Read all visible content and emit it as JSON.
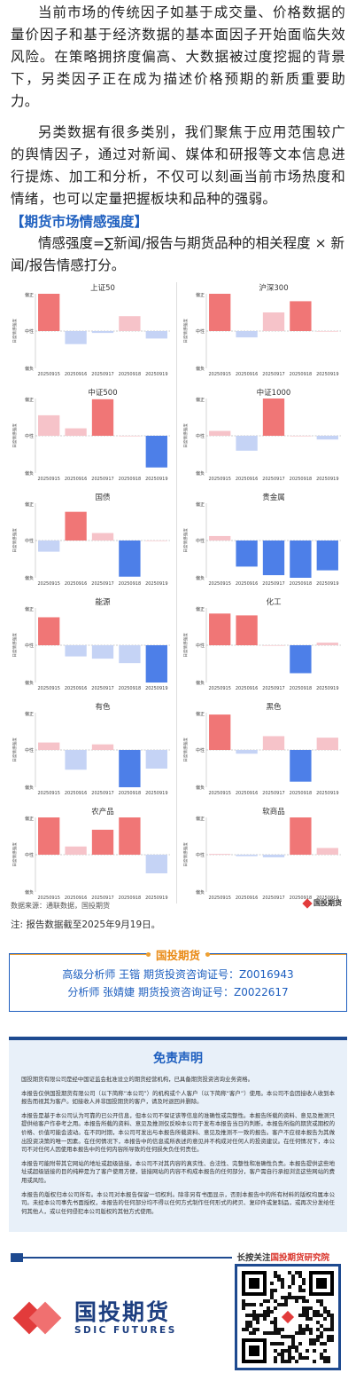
{
  "intro": {
    "p1": "当前市场的传统因子如基于成交量、价格数据的量价因子和基于经济数据的基本面因子开始面临失效风险。在策略拥挤度偏高、大数据被过度挖掘的背景下，另类因子正在成为描述价格预期的新质重要助力。",
    "p2": "另类数据有很多类别，我们聚焦于应用范围较广的舆情因子，通过对新闻、媒体和研报等文本信息进行提炼、加工和分析，不仅可以刻画当前市场热度和情绪，也可以定量把握板块和品种的强弱。",
    "section_title": "【期货市场情感强度】",
    "formula": "情感强度=∑新闻/报告与期货品种的相关程度 × 新闻/报告情感打分。"
  },
  "chart_common": {
    "y_labels": {
      "top": "偏正",
      "mid": "中性",
      "bottom": "偏负"
    },
    "y_axis_title": "日度情感强度",
    "dates": [
      "20250915",
      "20250916",
      "20250917",
      "20250918",
      "20250919"
    ],
    "ylim": [
      -1,
      1
    ],
    "pos_strong": "#f07676",
    "pos_light": "#f6c3c9",
    "neg_strong": "#4d7fe8",
    "neg_light": "#c5d3f5"
  },
  "chart_data": [
    {
      "type": "bar",
      "title": "上证50",
      "categories": [
        "20250915",
        "20250916",
        "20250917",
        "20250918",
        "20250919"
      ],
      "values": [
        1.0,
        -0.35,
        -0.05,
        0.4,
        -0.2
      ]
    },
    {
      "type": "bar",
      "title": "沪深300",
      "categories": [
        "20250915",
        "20250916",
        "20250917",
        "20250918",
        "20250919"
      ],
      "values": [
        1.0,
        -0.17,
        0.5,
        0.8,
        0.0
      ]
    },
    {
      "type": "bar",
      "title": "中证500",
      "categories": [
        "20250915",
        "20250916",
        "20250917",
        "20250918",
        "20250919"
      ],
      "values": [
        0.55,
        0.2,
        0.98,
        0.0,
        -0.85
      ]
    },
    {
      "type": "bar",
      "title": "中证1000",
      "categories": [
        "20250915",
        "20250916",
        "20250917",
        "20250918",
        "20250919"
      ],
      "values": [
        0.13,
        -0.4,
        1.0,
        0.0,
        -0.1
      ]
    },
    {
      "type": "bar",
      "title": "国债",
      "categories": [
        "20250915",
        "20250916",
        "20250917",
        "20250918",
        "20250919"
      ],
      "values": [
        -0.3,
        0.77,
        0.2,
        -0.97,
        0.0
      ]
    },
    {
      "type": "bar",
      "title": "贵金属",
      "categories": [
        "20250915",
        "20250916",
        "20250917",
        "20250918",
        "20250919"
      ],
      "values": [
        0.12,
        -0.7,
        -0.93,
        -1.0,
        -0.8
      ]
    },
    {
      "type": "bar",
      "title": "能源",
      "categories": [
        "20250915",
        "20250916",
        "20250917",
        "20250918",
        "20250919"
      ],
      "values": [
        0.75,
        -0.3,
        -0.36,
        -0.48,
        -1.0
      ]
    },
    {
      "type": "bar",
      "title": "化工",
      "categories": [
        "20250915",
        "20250916",
        "20250917",
        "20250918",
        "20250919"
      ],
      "values": [
        0.85,
        0.8,
        0.0,
        -0.75,
        0.07
      ]
    },
    {
      "type": "bar",
      "title": "有色",
      "categories": [
        "20250915",
        "20250916",
        "20250917",
        "20250918",
        "20250919"
      ],
      "values": [
        0.2,
        -0.53,
        0.15,
        -1.0,
        -0.5
      ]
    },
    {
      "type": "bar",
      "title": "黑色",
      "categories": [
        "20250915",
        "20250916",
        "20250917",
        "20250918",
        "20250919"
      ],
      "values": [
        0.95,
        -0.1,
        0.37,
        -0.85,
        0.33
      ]
    },
    {
      "type": "bar",
      "title": "农产品",
      "categories": [
        "20250915",
        "20250916",
        "20250917",
        "20250918",
        "20250919"
      ],
      "values": [
        1.0,
        0.22,
        0.67,
        1.0,
        -0.5
      ]
    },
    {
      "type": "bar",
      "title": "软商品",
      "categories": [
        "20250915",
        "20250916",
        "20250917",
        "20250918",
        "20250919"
      ],
      "values": [
        0.02,
        -0.04,
        -0.07,
        1.0,
        0.18
      ]
    }
  ],
  "source": {
    "text": "数据来源：通联数据，国投期货",
    "logo_text": "国投期货"
  },
  "note": "注: 报告数据截至2025年9月19日。",
  "analysts": {
    "brand": "国投期货",
    "line1": "高级分析师  王锴  期货投资咨询证号：Z0016943",
    "line2": "分析师  张婧婕  期货投资咨询证号：Z0022617"
  },
  "disclaimer": {
    "title": "免责声明",
    "paragraphs": [
      "国投期货有限公司是经中国证监会批准设立的期货经营机构，已具备期货投资咨询业务资格。",
      "本报告仅供国投期货有限公司（以下简称“本公司”）的机构或个人客户（以下简称“客户”）使用。本公司不会因接收人收到本报告而视其为客户。如接收人并非国投期货的客户，请及时退回并删除。",
      "本报告是基于本公司认为可靠的已公开信息，但本公司不保证该等信息的准确性或完整性。本报告所载的资料、意见及推测只提供给客户作参考之用。本报告所载的资料、意见及推测仅反映本公司于发布本报告当日的判断，本报告所指的期货或期权的价格、价值可能会波动。在不同时期，本公司可发出与本报告所载资料、意见及推测不一致的报告。客户不应视本报告为其做出投资决策的唯一因素。在任何情况下，本报告中的信息或所表述的意见并不构成对任何人的投资建议。在任何情况下，本公司不对任何人因使用本报告中的任何内容所导致的任何损失负任何责任。",
      "本报告可能附带其它网站的地址或超级链接，本公司不对其内容的真实性、合法性、完整性和准确性负责。本报告提供这些地址或超级链接的目的纯粹是为了客户使用方便，链接网站的内容不构成本报告的任何部分，客户需自行承担浏览这些网站的费用或风险。",
      "本报告的版权归本公司所有。本公司对本报告保留一切权利。除非另有书面显示，否则本报告中的所有材料的版权均属本公司。未经本公司事先书面授权，本报告的任何部分均不得以任何方式制作任何形式的拷贝、复印件或复制品，或再次分发给任何其他人，或以任何侵犯本公司版权的其他方式使用。"
    ]
  },
  "footer": {
    "follow_prefix": "长按关注",
    "follow_highlight": "国投期货研究院",
    "logo_cn": "国投期货",
    "logo_en": "SDIC FUTURES"
  }
}
